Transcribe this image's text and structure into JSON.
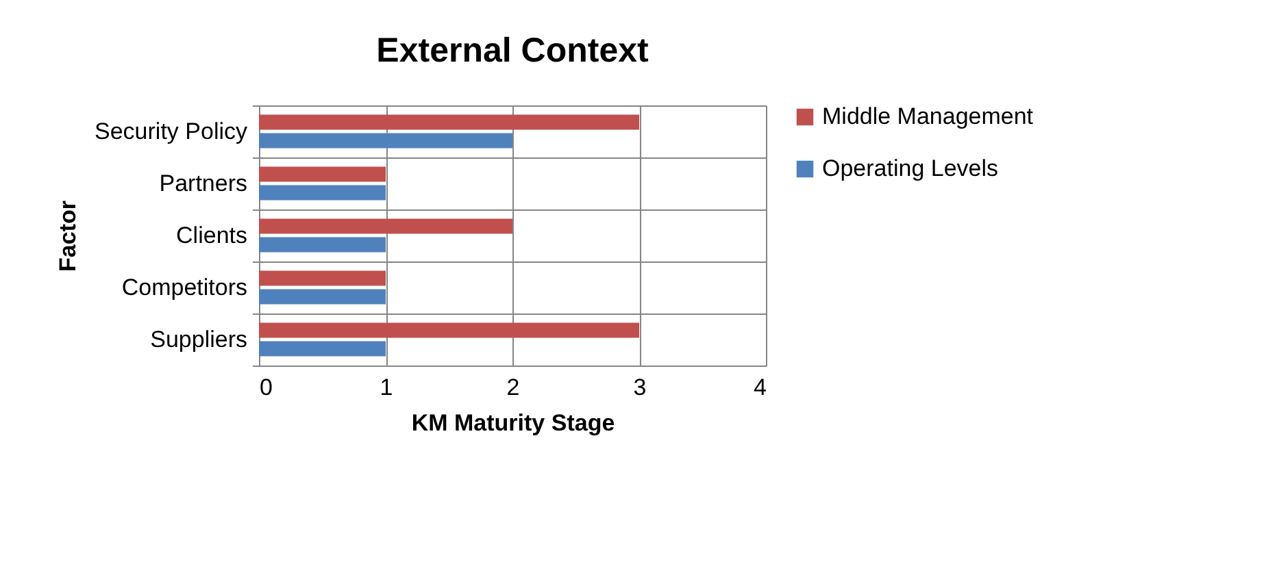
{
  "chart_data": {
    "type": "bar",
    "orientation": "horizontal",
    "title": "External Context",
    "xlabel": "KM Maturity Stage",
    "ylabel": "Factor",
    "categories": [
      "Security Policy",
      "Partners",
      "Clients",
      "Competitors",
      "Suppliers"
    ],
    "series": [
      {
        "name": "Middle Management",
        "color": "#c0504d",
        "values": [
          3,
          1,
          2,
          1,
          3
        ]
      },
      {
        "name": "Operating Levels",
        "color": "#4f81bd",
        "values": [
          2,
          1,
          1,
          1,
          1
        ]
      }
    ],
    "xlim": [
      0,
      4
    ],
    "xticks": [
      0,
      1,
      2,
      3,
      4
    ],
    "grid": true,
    "legend": "right"
  }
}
